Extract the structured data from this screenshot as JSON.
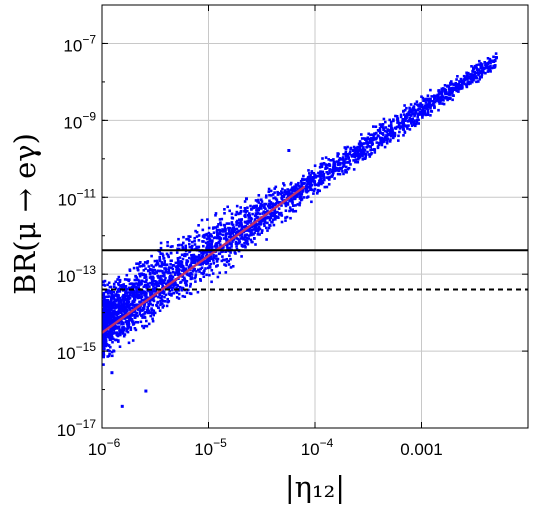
{
  "chart_data": {
    "type": "scatter",
    "title": "",
    "xlabel": "|η₁₂|",
    "ylabel": "BR(μ → eγ)",
    "x_scale": "log",
    "y_scale": "log",
    "xlim": [
      1e-06,
      0.01
    ],
    "ylim": [
      1e-17,
      1e-06
    ],
    "grid": true,
    "x_ticks": [
      {
        "value": 1e-06,
        "base": "10",
        "exp": "−6"
      },
      {
        "value": 1e-05,
        "base": "10",
        "exp": "−5"
      },
      {
        "value": 0.0001,
        "base": "10",
        "exp": "−4"
      },
      {
        "value": 0.001,
        "base": "0.001",
        "exp": ""
      }
    ],
    "y_ticks": [
      {
        "value": 1e-17,
        "base": "10",
        "exp": "−17"
      },
      {
        "value": 1e-15,
        "base": "10",
        "exp": "−15"
      },
      {
        "value": 1e-13,
        "base": "10",
        "exp": "−13"
      },
      {
        "value": 1e-11,
        "base": "10",
        "exp": "−11"
      },
      {
        "value": 1e-09,
        "base": "10",
        "exp": "−9"
      },
      {
        "value": 1e-07,
        "base": "10",
        "exp": "−7"
      }
    ],
    "scatter_color": "#0000ff",
    "fit_color": "#c0306a",
    "fit_line": {
      "x": [
        1e-06,
        8e-05
      ],
      "y": [
        3e-15,
        1.9e-11
      ]
    },
    "fit_slope_log": 2.0,
    "envelope_points": [
      {
        "x": 1e-06,
        "y_min": 3e-16,
        "y_max": 1e-13
      },
      {
        "x": 3e-06,
        "y_min": 3e-15,
        "y_max": 8e-13
      },
      {
        "x": 1e-05,
        "y_min": 4e-14,
        "y_max": 5e-12
      },
      {
        "x": 3e-05,
        "y_min": 5e-13,
        "y_max": 2e-11
      },
      {
        "x": 0.0001,
        "y_min": 1e-11,
        "y_max": 1e-10
      },
      {
        "x": 0.0005,
        "y_min": 2e-10,
        "y_max": 2e-09
      },
      {
        "x": 0.005,
        "y_min": 2e-08,
        "y_max": 8e-08
      }
    ],
    "outliers": [
      {
        "x": 1.2e-06,
        "y": 3e-16
      },
      {
        "x": 1.5e-06,
        "y": 4e-17
      },
      {
        "x": 2.2e-05,
        "y": 1e-11
      },
      {
        "x": 5.5e-05,
        "y": 1.8e-10
      },
      {
        "x": 1.5e-06,
        "y": 1.6e-14
      },
      {
        "x": 2.5e-06,
        "y": 1e-16
      }
    ],
    "reference_lines": [
      {
        "y": 4.2e-13,
        "style": "solid",
        "color": "#000000"
      },
      {
        "y": 4e-14,
        "style": "dashed",
        "color": "#000000"
      }
    ]
  }
}
